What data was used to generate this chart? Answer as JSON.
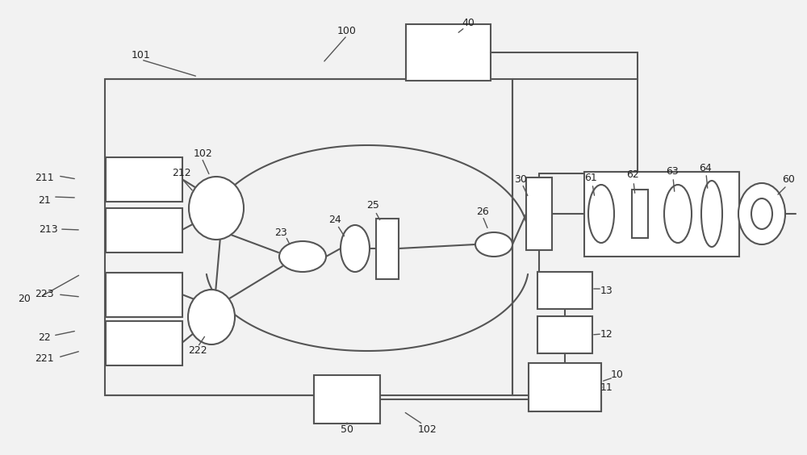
{
  "bg_color": "#f2f2f2",
  "line_color": "#555555",
  "box_fill": "#ffffff",
  "lw": 1.5,
  "fig_w": 10.0,
  "fig_h": 5.64,
  "dpi": 100
}
